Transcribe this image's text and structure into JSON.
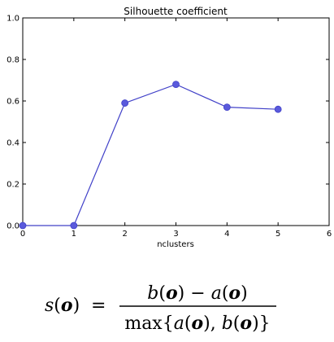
{
  "chart_data": {
    "type": "line",
    "title": "Silhouette coefficient",
    "xlabel": "nclusters",
    "ylabel": "",
    "xlim": [
      0,
      6
    ],
    "ylim": [
      0.0,
      1.0
    ],
    "x_ticks": [
      "0",
      "1",
      "2",
      "3",
      "4",
      "5",
      "6"
    ],
    "y_ticks": [
      "0.0",
      "0.2",
      "0.4",
      "0.6",
      "0.8",
      "1.0"
    ],
    "grid": false,
    "series": [
      {
        "x": [
          0,
          1,
          2,
          3,
          4,
          5
        ],
        "y": [
          0.0,
          0.0,
          0.59,
          0.68,
          0.57,
          0.56
        ],
        "color": "#4040c8",
        "marker_color": "#5a5adc"
      }
    ]
  },
  "formula": {
    "lhs_name": "s",
    "lhs_var": "o",
    "equals": "=",
    "numerator": {
      "b_name": "b",
      "b_var": "o",
      "minus": "−",
      "a_name": "a",
      "a_var": "o"
    },
    "denominator": {
      "func": "max",
      "a_name": "a",
      "a_var": "o",
      "b_name": "b",
      "b_var": "o"
    }
  }
}
